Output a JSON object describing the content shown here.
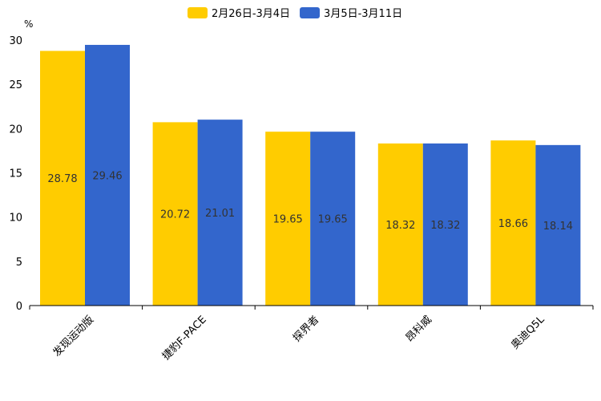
{
  "chart_data": {
    "type": "bar",
    "title": "",
    "ylabel": "%",
    "xlabel": "",
    "ylim": [
      0,
      30
    ],
    "yticks": [
      0,
      5,
      10,
      15,
      20,
      25,
      30
    ],
    "categories": [
      "发现运动版",
      "捷豹F-PACE",
      "探界者",
      "昂科威",
      "奥迪Q5L"
    ],
    "series": [
      {
        "name": "2月26日-3月4日",
        "color": "#ffcc00",
        "values": [
          28.78,
          20.72,
          19.65,
          18.32,
          18.66
        ]
      },
      {
        "name": "3月5日-3月11日",
        "color": "#3366cc",
        "values": [
          29.46,
          21.01,
          19.65,
          18.32,
          18.14
        ]
      }
    ],
    "legend": "top-center",
    "grid": false
  }
}
